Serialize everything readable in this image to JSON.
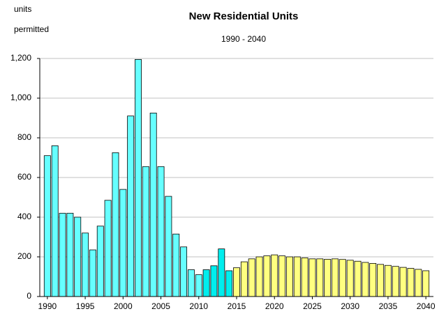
{
  "chart_data": {
    "type": "bar",
    "title": "New Residential Units",
    "subtitle": "1990 - 2040",
    "y_label": [
      "units",
      "permitted"
    ],
    "x": [
      1990,
      1991,
      1992,
      1993,
      1994,
      1995,
      1996,
      1997,
      1998,
      1999,
      2000,
      2001,
      2002,
      2003,
      2004,
      2005,
      2006,
      2007,
      2008,
      2009,
      2010,
      2011,
      2012,
      2013,
      2014,
      2015,
      2016,
      2017,
      2018,
      2019,
      2020,
      2021,
      2022,
      2023,
      2024,
      2025,
      2026,
      2027,
      2028,
      2029,
      2030,
      2031,
      2032,
      2033,
      2034,
      2035,
      2036,
      2037,
      2038,
      2039,
      2040
    ],
    "values": [
      710,
      760,
      420,
      420,
      400,
      320,
      235,
      355,
      485,
      725,
      540,
      910,
      1195,
      655,
      925,
      655,
      505,
      315,
      250,
      135,
      110,
      135,
      155,
      240,
      130,
      145,
      175,
      190,
      200,
      205,
      210,
      205,
      200,
      200,
      195,
      190,
      190,
      188,
      190,
      187,
      183,
      178,
      172,
      167,
      162,
      157,
      152,
      147,
      142,
      137,
      130
    ],
    "colors": [
      "#66ffff",
      "#66ffff",
      "#66ffff",
      "#66ffff",
      "#66ffff",
      "#66ffff",
      "#66ffff",
      "#66ffff",
      "#66ffff",
      "#66ffff",
      "#66ffff",
      "#66ffff",
      "#66ffff",
      "#66ffff",
      "#66ffff",
      "#66ffff",
      "#66ffff",
      "#66ffff",
      "#66ffff",
      "#66ffff",
      "#66ffff",
      "#00eeee",
      "#00eeee",
      "#00eeee",
      "#00eeee",
      "#ffff80",
      "#ffff80",
      "#ffff80",
      "#ffff80",
      "#ffff80",
      "#ffff80",
      "#ffff80",
      "#ffff80",
      "#ffff80",
      "#ffff80",
      "#ffff80",
      "#ffff80",
      "#ffff80",
      "#ffff80",
      "#ffff80",
      "#ffff80",
      "#ffff80",
      "#ffff80",
      "#ffff80",
      "#ffff80",
      "#ffff80",
      "#ffff80",
      "#ffff80",
      "#ffff80",
      "#ffff80",
      "#ffff80"
    ],
    "xlim": [
      1989,
      2041
    ],
    "xticks": [
      1990,
      1995,
      2000,
      2005,
      2010,
      2015,
      2020,
      2025,
      2030,
      2035,
      2040
    ],
    "ylim": [
      0,
      1200
    ],
    "yticks": [
      0,
      200,
      400,
      600,
      800,
      {
        "value": 1000,
        "label": "1,000"
      },
      {
        "value": 1200,
        "label": "1,200"
      }
    ],
    "grid": true
  }
}
